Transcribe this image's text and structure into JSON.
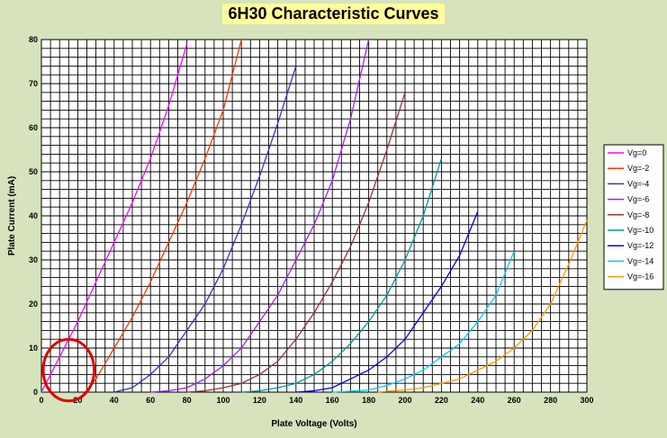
{
  "chart_data": {
    "type": "line",
    "title": "6H30 Characteristic Curves",
    "xlabel": "Plate Voltage (Volts)",
    "ylabel": "Plate Current (mA)",
    "xlim": [
      0,
      300
    ],
    "ylim": [
      0,
      80
    ],
    "x_ticks": [
      0,
      20,
      40,
      60,
      80,
      100,
      120,
      140,
      160,
      180,
      200,
      220,
      240,
      260,
      280,
      300
    ],
    "y_ticks": [
      0,
      10,
      20,
      30,
      40,
      50,
      60,
      70,
      80
    ],
    "grid": true,
    "legend_position": "right",
    "series": [
      {
        "name": "Vg=0",
        "color": "#ff00ff",
        "x": [
          0,
          5,
          10,
          20,
          30,
          40,
          50,
          60,
          70,
          80
        ],
        "y": [
          0,
          4,
          8,
          16,
          25,
          34,
          43,
          53,
          65,
          79
        ]
      },
      {
        "name": "Vg=-2",
        "color": "#ff3300",
        "x": [
          24,
          30,
          40,
          50,
          60,
          70,
          80,
          90,
          100,
          110
        ],
        "y": [
          0,
          3,
          10,
          17,
          25,
          34,
          43,
          53,
          64,
          80
        ]
      },
      {
        "name": "Vg=-4",
        "color": "#3333cc",
        "x": [
          40,
          50,
          60,
          70,
          80,
          90,
          100,
          110,
          120,
          130,
          140
        ],
        "y": [
          0,
          1,
          4,
          8,
          14,
          20,
          28,
          38,
          49,
          61,
          74
        ]
      },
      {
        "name": "Vg=-6",
        "color": "#a020f0",
        "x": [
          60,
          70,
          80,
          90,
          100,
          110,
          120,
          130,
          140,
          150,
          160,
          170,
          180
        ],
        "y": [
          0,
          0.3,
          1,
          3,
          6,
          10,
          16,
          22,
          30,
          38,
          48,
          62,
          80
        ]
      },
      {
        "name": "Vg=-8",
        "color": "#993333",
        "x": [
          80,
          90,
          100,
          110,
          120,
          130,
          140,
          150,
          160,
          170,
          180,
          190,
          200
        ],
        "y": [
          0,
          0.3,
          1,
          2,
          4,
          7,
          12,
          18,
          25,
          33,
          43,
          55,
          68
        ]
      },
      {
        "name": "Vg=-10",
        "color": "#009999",
        "x": [
          110,
          120,
          130,
          140,
          150,
          160,
          170,
          180,
          190,
          200,
          210,
          220
        ],
        "y": [
          0,
          0.3,
          1,
          2,
          4,
          7,
          11,
          16,
          22,
          30,
          40,
          53
        ]
      },
      {
        "name": "Vg=-12",
        "color": "#0000ee",
        "x": [
          140,
          150,
          160,
          170,
          180,
          190,
          200,
          210,
          220,
          230,
          240
        ],
        "y": [
          0,
          0.3,
          1,
          3,
          5,
          8,
          12,
          18,
          24,
          31,
          41
        ]
      },
      {
        "name": "Vg=-14",
        "color": "#00ccff",
        "x": [
          160,
          170,
          180,
          190,
          200,
          210,
          220,
          230,
          240,
          250,
          260
        ],
        "y": [
          0,
          0.2,
          0.5,
          1.5,
          3,
          5,
          8,
          11,
          16,
          22,
          32
        ]
      },
      {
        "name": "Vg=-16",
        "color": "#ff9900",
        "x": [
          185,
          190,
          200,
          210,
          220,
          230,
          240,
          250,
          260,
          270,
          280,
          290,
          300
        ],
        "y": [
          0,
          0.2,
          0.5,
          1,
          2,
          3,
          5,
          7,
          10,
          14,
          20,
          29,
          39
        ]
      }
    ],
    "annotation": {
      "shape": "ellipse",
      "color": "#e00000",
      "center_x": 15,
      "center_y": 5,
      "radius_x": 14,
      "radius_y": 7
    }
  }
}
